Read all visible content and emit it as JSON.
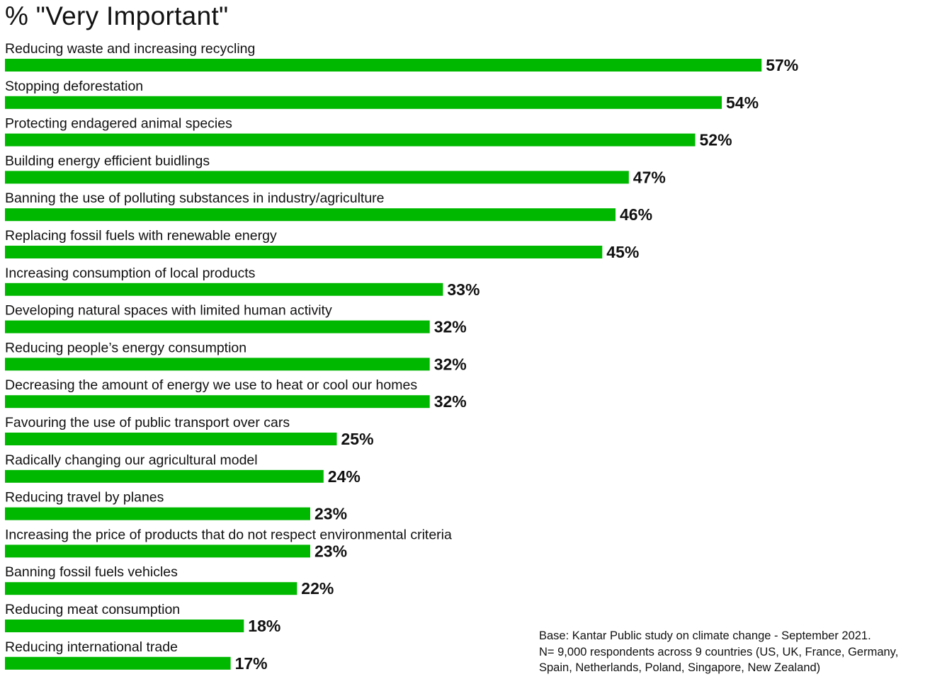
{
  "chart_data": {
    "type": "bar",
    "orientation": "horizontal",
    "title": "% \"Very Important\"",
    "categories": [
      "Reducing waste and increasing recycling",
      "Stopping deforestation",
      "Protecting endagered animal species",
      "Building energy efficient buidlings",
      "Banning the use of polluting substances in industry/agriculture",
      "Replacing fossil fuels with renewable energy",
      "Increasing consumption of local products",
      "Developing natural spaces with limited human activity",
      "Reducing people’s energy consumption",
      "Decreasing the amount of energy we use to heat or cool our homes",
      "Favouring the use of public transport over cars",
      "Radically changing our agricultural model",
      "Reducing travel by planes",
      "Increasing the price of products that do not respect environmental criteria",
      "Banning fossil fuels vehicles",
      "Reducing meat consumption",
      "Reducing international trade"
    ],
    "values": [
      57,
      54,
      52,
      47,
      46,
      45,
      33,
      32,
      32,
      32,
      25,
      24,
      23,
      23,
      22,
      18,
      17
    ],
    "value_labels": [
      "57%",
      "54%",
      "52%",
      "47%",
      "46%",
      "45%",
      "33%",
      "32%",
      "32%",
      "32%",
      "25%",
      "24%",
      "23%",
      "23%",
      "22%",
      "18%",
      "17%"
    ],
    "unit": "%",
    "bar_color": "#00b800",
    "xlim": [
      0,
      100
    ],
    "grid": false,
    "legend": "none"
  },
  "footnote": {
    "line1": "Base: Kantar Public study on climate change - September 2021.",
    "line2": "N= 9,000 respondents across 9 countries (US, UK, France, Germany,",
    "line3": "Spain, Netherlands, Poland, Singapore, New Zealand)"
  }
}
